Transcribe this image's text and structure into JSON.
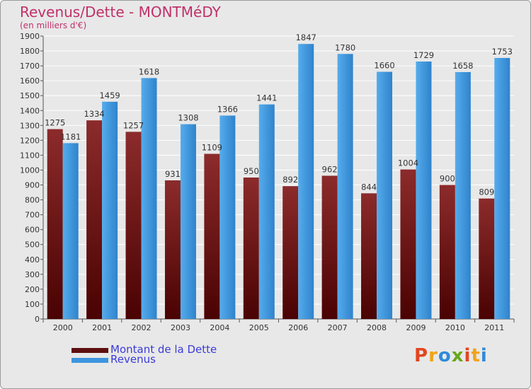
{
  "chart_data": {
    "type": "bar",
    "title": "Revenus/Dette - MONTMéDY",
    "subtitle": "(en milliers d'€)",
    "categories": [
      "2000",
      "2001",
      "2002",
      "2003",
      "2004",
      "2005",
      "2006",
      "2007",
      "2008",
      "2009",
      "2010",
      "2011"
    ],
    "series": [
      {
        "name": "Montant de la Dette",
        "color": "#7a1515",
        "values": [
          1275,
          1334,
          1257,
          931,
          1109,
          950,
          892,
          962,
          844,
          1004,
          900,
          809
        ],
        "labels": [
          "1275",
          "1334",
          "1257",
          "931",
          "1109",
          "950",
          "892",
          "962",
          "844",
          "1004",
          "900",
          "809"
        ]
      },
      {
        "name": "Revenus",
        "color": "#3d95de",
        "values": [
          1181,
          1459,
          1618,
          1308,
          1366,
          1441,
          1847,
          1780,
          1660,
          1729,
          1658,
          1753
        ],
        "labels": [
          "1181",
          "1459",
          "1618",
          "1308",
          "1366",
          "1441",
          "1847",
          "1780",
          "1660",
          "1729",
          "1658",
          "1753"
        ]
      }
    ],
    "ylim": [
      0,
      1900
    ],
    "ytick_step": 100,
    "grid": true,
    "legend": "bottom-left"
  },
  "legend": {
    "debt_label": "Montant de la Dette",
    "revenue_label": "Revenus",
    "debt_color": "#5e0f0f",
    "revenue_color": "#3d95de"
  },
  "logo": {
    "letters": [
      "P",
      "r",
      "o",
      "x",
      "i",
      "t",
      "i"
    ],
    "colors": [
      "#e2461f",
      "#f2a316",
      "#2f8ad8",
      "#6aa71c",
      "#e2461f",
      "#f2a316",
      "#2f8ad8"
    ]
  }
}
